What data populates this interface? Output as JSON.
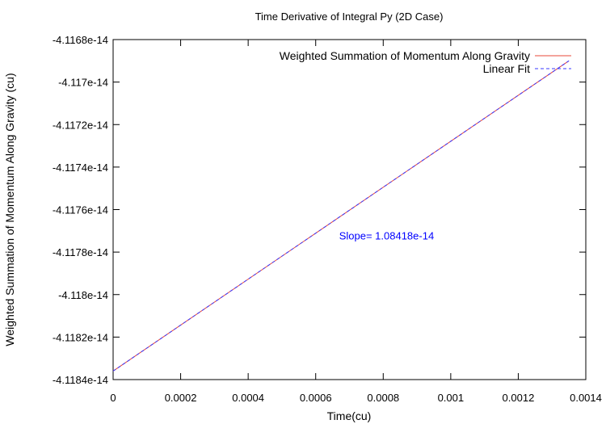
{
  "chart_data": {
    "type": "line",
    "title": "Time Derivative of Integral Py (2D Case)",
    "xlabel": "Time(cu)",
    "ylabel": "Weighted Summation of Momentum Along Gravity (cu)",
    "xlim": [
      0,
      0.0014
    ],
    "ylim": [
      -4.1184e-14,
      -4.1168e-14
    ],
    "x_ticks": [
      "0",
      "0.0002",
      "0.0004",
      "0.0006",
      "0.0008",
      "0.001",
      "0.0012",
      "0.0014"
    ],
    "y_ticks": [
      "-4.1168e-14",
      "-4.117e-14",
      "-4.1172e-14",
      "-4.1174e-14",
      "-4.1176e-14",
      "-4.1178e-14",
      "-4.118e-14",
      "-4.1182e-14",
      "-4.1184e-14"
    ],
    "x_tick_values": [
      0,
      0.0002,
      0.0004,
      0.0006,
      0.0008,
      0.001,
      0.0012,
      0.0014
    ],
    "y_tick_values": [
      -4.1168e-14,
      -4.117e-14,
      -4.1172e-14,
      -4.1174e-14,
      -4.1176e-14,
      -4.1178e-14,
      -4.118e-14,
      -4.1182e-14,
      -4.1184e-14
    ],
    "series": [
      {
        "name": "Weighted Summation of Momentum Along Gravity",
        "style": "solid",
        "color": "#e8483a",
        "x": [
          0,
          0.00135
        ],
        "y": [
          -4.11836e-14,
          -4.1169e-14
        ]
      },
      {
        "name": "Linear Fit",
        "style": "dashed",
        "color": "#3a3aff",
        "x": [
          0,
          0.00135
        ],
        "y": [
          -4.11836e-14,
          -4.1169e-14
        ]
      }
    ],
    "annotations": [
      {
        "text": "Slope= 1.08418e-14",
        "x": 0.00081,
        "y": -4.11774e-14,
        "color": "#0000ff"
      }
    ],
    "legend_position": "top-right",
    "grid": false
  }
}
